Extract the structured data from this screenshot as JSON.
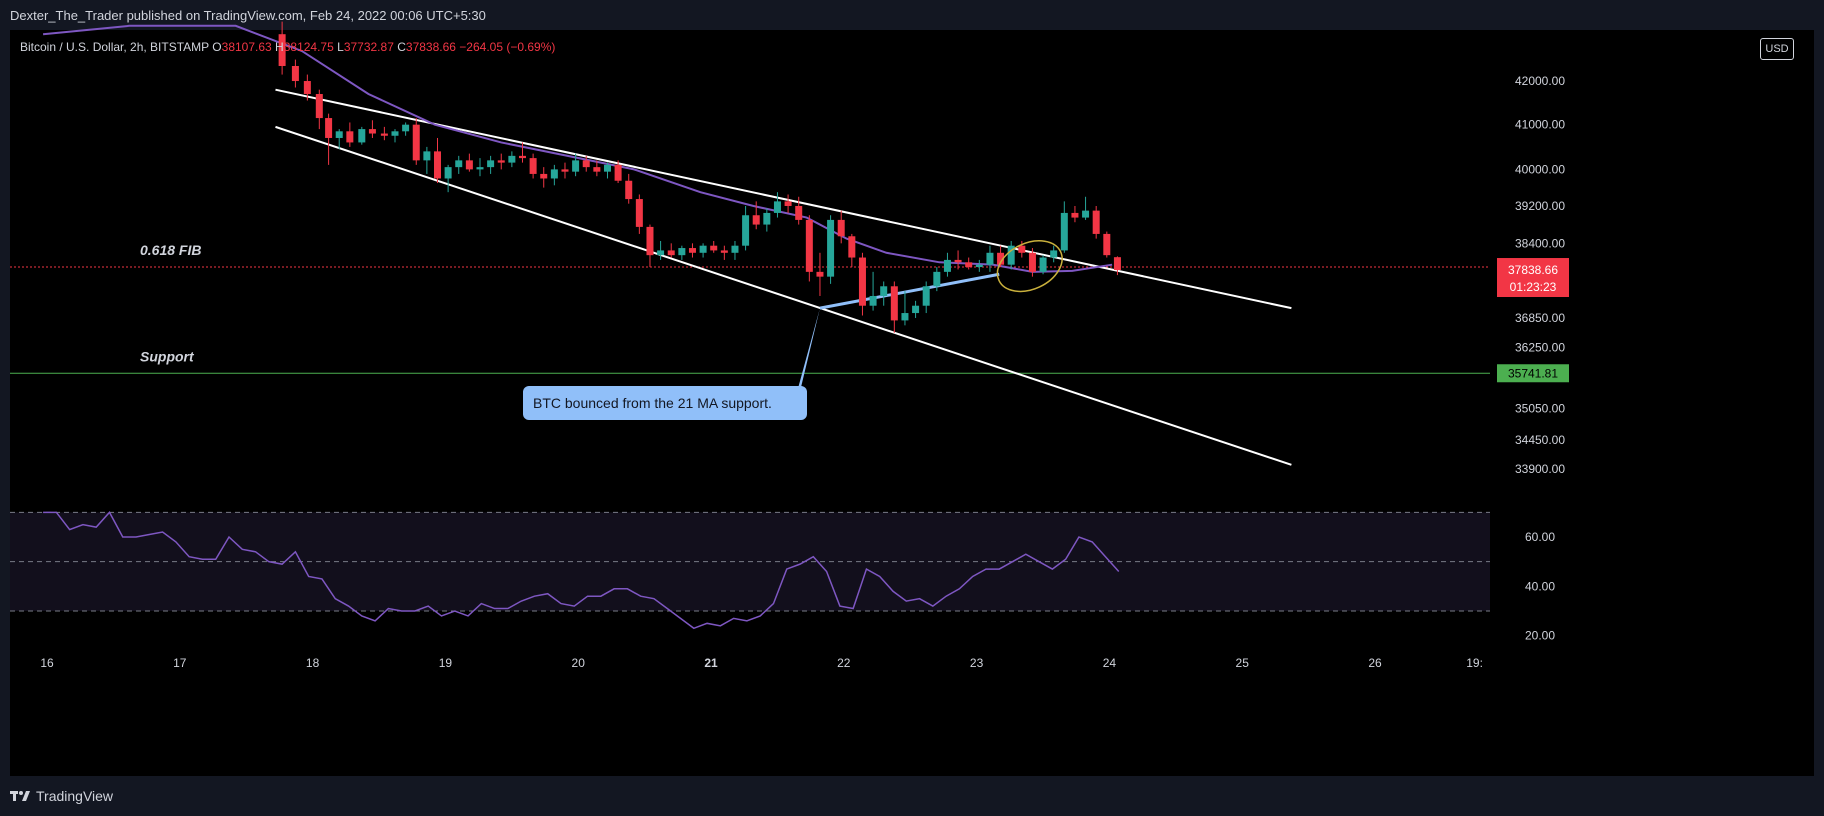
{
  "header": {
    "publisher": "Dexter_The_Trader published on TradingView.com, Feb 24, 2022 00:06 UTC+5:30"
  },
  "legend": {
    "symbol": "Bitcoin / U.S. Dollar, 2h, BITSTAMP",
    "open_label": "O",
    "open": "38107.63",
    "high_label": "H",
    "high": "38124.75",
    "low_label": "L",
    "low": "37732.87",
    "close_label": "C",
    "close": "37838.66",
    "change": "−264.05 (−0.69%)"
  },
  "currency": "USD",
  "footer": {
    "brand": "TradingView"
  },
  "colors": {
    "up": "#26a69a",
    "down": "#f23645",
    "ma": "#7e57c2",
    "rsi": "#7e57c2",
    "channel": "#ffffff",
    "callout": "#90bff9",
    "fib_line": "#f23645",
    "support_line": "#4caf50"
  },
  "chart_data": [
    {
      "type": "line",
      "title": "Bitcoin / U.S. Dollar, 2h, BITSTAMP",
      "xlabel": "",
      "ylabel": "",
      "ylim": [
        33400,
        43200
      ],
      "x_ticks": [
        "16",
        "17",
        "18",
        "19",
        "20",
        "21",
        "22",
        "23",
        "24",
        "25",
        "26",
        "19:"
      ],
      "y_ticks": [
        "42000.00",
        "41000.00",
        "40000.00",
        "39200.00",
        "38400.00",
        "36850.00",
        "36250.00",
        "35050.00",
        "34450.00",
        "33900.00"
      ],
      "candles": [
        {
          "x": 17.65,
          "o": 43100,
          "h": 43400,
          "l": 42150,
          "c": 42350
        },
        {
          "x": 17.75,
          "o": 42350,
          "h": 42500,
          "l": 41850,
          "c": 42000
        },
        {
          "x": 17.84,
          "o": 42000,
          "h": 42150,
          "l": 41550,
          "c": 41700
        },
        {
          "x": 17.93,
          "o": 41700,
          "h": 41800,
          "l": 40900,
          "c": 41150
        },
        {
          "x": 18.0,
          "o": 41150,
          "h": 41250,
          "l": 40100,
          "c": 40700
        },
        {
          "x": 18.08,
          "o": 40700,
          "h": 40900,
          "l": 40450,
          "c": 40850
        },
        {
          "x": 18.16,
          "o": 40850,
          "h": 41050,
          "l": 40500,
          "c": 40600
        },
        {
          "x": 18.25,
          "o": 40600,
          "h": 40950,
          "l": 40550,
          "c": 40900
        },
        {
          "x": 18.33,
          "o": 40900,
          "h": 41100,
          "l": 40700,
          "c": 40800
        },
        {
          "x": 18.42,
          "o": 40800,
          "h": 40950,
          "l": 40650,
          "c": 40750
        },
        {
          "x": 18.5,
          "o": 40750,
          "h": 40900,
          "l": 40600,
          "c": 40850
        },
        {
          "x": 18.58,
          "o": 40850,
          "h": 41050,
          "l": 40750,
          "c": 41000
        },
        {
          "x": 18.66,
          "o": 41000,
          "h": 41150,
          "l": 40100,
          "c": 40200
        },
        {
          "x": 18.74,
          "o": 40200,
          "h": 40500,
          "l": 39900,
          "c": 40400
        },
        {
          "x": 18.82,
          "o": 40400,
          "h": 40700,
          "l": 39700,
          "c": 39800
        },
        {
          "x": 18.9,
          "o": 39800,
          "h": 40100,
          "l": 39500,
          "c": 40050
        },
        {
          "x": 18.98,
          "o": 40050,
          "h": 40300,
          "l": 39900,
          "c": 40200
        },
        {
          "x": 19.06,
          "o": 40200,
          "h": 40350,
          "l": 39950,
          "c": 40000
        },
        {
          "x": 19.14,
          "o": 40000,
          "h": 40250,
          "l": 39850,
          "c": 40050
        },
        {
          "x": 19.22,
          "o": 40050,
          "h": 40300,
          "l": 39900,
          "c": 40200
        },
        {
          "x": 19.3,
          "o": 40200,
          "h": 40350,
          "l": 40000,
          "c": 40150
        },
        {
          "x": 19.38,
          "o": 40150,
          "h": 40400,
          "l": 40050,
          "c": 40300
        },
        {
          "x": 19.46,
          "o": 40300,
          "h": 40600,
          "l": 40150,
          "c": 40250
        },
        {
          "x": 19.54,
          "o": 40250,
          "h": 40350,
          "l": 39800,
          "c": 39900
        },
        {
          "x": 19.62,
          "o": 39900,
          "h": 40050,
          "l": 39600,
          "c": 39800
        },
        {
          "x": 19.7,
          "o": 39800,
          "h": 40100,
          "l": 39650,
          "c": 40000
        },
        {
          "x": 19.78,
          "o": 40000,
          "h": 40150,
          "l": 39800,
          "c": 39950
        },
        {
          "x": 19.86,
          "o": 39950,
          "h": 40350,
          "l": 39850,
          "c": 40200
        },
        {
          "x": 19.94,
          "o": 40200,
          "h": 40300,
          "l": 39950,
          "c": 40050
        },
        {
          "x": 20.02,
          "o": 40050,
          "h": 40200,
          "l": 39850,
          "c": 39950
        },
        {
          "x": 20.1,
          "o": 39950,
          "h": 40150,
          "l": 39800,
          "c": 40100
        },
        {
          "x": 20.18,
          "o": 40100,
          "h": 40200,
          "l": 39700,
          "c": 39750
        },
        {
          "x": 20.26,
          "o": 39750,
          "h": 39900,
          "l": 39250,
          "c": 39350
        },
        {
          "x": 20.34,
          "o": 39350,
          "h": 39450,
          "l": 38600,
          "c": 38750
        },
        {
          "x": 20.42,
          "o": 38750,
          "h": 38800,
          "l": 37900,
          "c": 38150
        },
        {
          "x": 20.5,
          "o": 38150,
          "h": 38450,
          "l": 38050,
          "c": 38250
        },
        {
          "x": 20.58,
          "o": 38250,
          "h": 38400,
          "l": 38100,
          "c": 38150
        },
        {
          "x": 20.66,
          "o": 38150,
          "h": 38350,
          "l": 38050,
          "c": 38300
        },
        {
          "x": 20.74,
          "o": 38300,
          "h": 38400,
          "l": 38100,
          "c": 38200
        },
        {
          "x": 20.82,
          "o": 38200,
          "h": 38400,
          "l": 38100,
          "c": 38350
        },
        {
          "x": 20.9,
          "o": 38350,
          "h": 38450,
          "l": 38200,
          "c": 38250
        },
        {
          "x": 20.98,
          "o": 38250,
          "h": 38350,
          "l": 38050,
          "c": 38200
        },
        {
          "x": 21.06,
          "o": 38200,
          "h": 38450,
          "l": 38050,
          "c": 38350
        },
        {
          "x": 21.14,
          "o": 38350,
          "h": 39200,
          "l": 38250,
          "c": 39000
        },
        {
          "x": 21.22,
          "o": 39000,
          "h": 39300,
          "l": 38700,
          "c": 38800
        },
        {
          "x": 21.3,
          "o": 38800,
          "h": 39150,
          "l": 38650,
          "c": 39050
        },
        {
          "x": 21.38,
          "o": 39050,
          "h": 39500,
          "l": 38950,
          "c": 39300
        },
        {
          "x": 21.46,
          "o": 39300,
          "h": 39450,
          "l": 39050,
          "c": 39200
        },
        {
          "x": 21.54,
          "o": 39200,
          "h": 39400,
          "l": 38800,
          "c": 38900
        },
        {
          "x": 21.62,
          "o": 38900,
          "h": 39000,
          "l": 37600,
          "c": 37800
        },
        {
          "x": 21.7,
          "o": 37800,
          "h": 38200,
          "l": 37300,
          "c": 37700
        },
        {
          "x": 21.78,
          "o": 37700,
          "h": 39000,
          "l": 37550,
          "c": 38900
        },
        {
          "x": 21.86,
          "o": 38900,
          "h": 39100,
          "l": 38400,
          "c": 38550
        },
        {
          "x": 21.94,
          "o": 38550,
          "h": 38600,
          "l": 37900,
          "c": 38100
        },
        {
          "x": 22.02,
          "o": 38100,
          "h": 38200,
          "l": 36900,
          "c": 37100
        },
        {
          "x": 22.1,
          "o": 37100,
          "h": 37800,
          "l": 37000,
          "c": 37300
        },
        {
          "x": 22.18,
          "o": 37300,
          "h": 37600,
          "l": 37100,
          "c": 37500
        },
        {
          "x": 22.26,
          "o": 37500,
          "h": 37600,
          "l": 36550,
          "c": 36800
        },
        {
          "x": 22.34,
          "o": 36800,
          "h": 37400,
          "l": 36700,
          "c": 36950
        },
        {
          "x": 22.42,
          "o": 36950,
          "h": 37200,
          "l": 36850,
          "c": 37100
        },
        {
          "x": 22.5,
          "o": 37100,
          "h": 37600,
          "l": 36950,
          "c": 37500
        },
        {
          "x": 22.58,
          "o": 37500,
          "h": 37900,
          "l": 37400,
          "c": 37800
        },
        {
          "x": 22.66,
          "o": 37800,
          "h": 38200,
          "l": 37700,
          "c": 38050
        },
        {
          "x": 22.74,
          "o": 38050,
          "h": 38250,
          "l": 37850,
          "c": 38000
        },
        {
          "x": 22.82,
          "o": 38000,
          "h": 38100,
          "l": 37850,
          "c": 37900
        },
        {
          "x": 22.9,
          "o": 37900,
          "h": 38050,
          "l": 37800,
          "c": 37950
        },
        {
          "x": 22.98,
          "o": 37950,
          "h": 38350,
          "l": 37800,
          "c": 38200
        },
        {
          "x": 23.06,
          "o": 38200,
          "h": 38350,
          "l": 37900,
          "c": 37950
        },
        {
          "x": 23.14,
          "o": 37950,
          "h": 38450,
          "l": 37850,
          "c": 38350
        },
        {
          "x": 23.22,
          "o": 38350,
          "h": 38450,
          "l": 38100,
          "c": 38200
        },
        {
          "x": 23.3,
          "o": 38200,
          "h": 38300,
          "l": 37700,
          "c": 37800
        },
        {
          "x": 23.38,
          "o": 37800,
          "h": 38150,
          "l": 37750,
          "c": 38100
        },
        {
          "x": 23.46,
          "o": 38100,
          "h": 38350,
          "l": 38000,
          "c": 38250
        },
        {
          "x": 23.54,
          "o": 38250,
          "h": 39300,
          "l": 38200,
          "c": 39050
        },
        {
          "x": 23.62,
          "o": 39050,
          "h": 39200,
          "l": 38850,
          "c": 38950
        },
        {
          "x": 23.7,
          "o": 38950,
          "h": 39400,
          "l": 38900,
          "c": 39100
        },
        {
          "x": 23.78,
          "o": 39100,
          "h": 39200,
          "l": 38500,
          "c": 38600
        },
        {
          "x": 23.86,
          "o": 38600,
          "h": 38650,
          "l": 38100,
          "c": 38150
        },
        {
          "x": 23.94,
          "o": 38107.63,
          "h": 38124.75,
          "l": 37732.87,
          "c": 37838.66
        }
      ],
      "ma_21": [
        {
          "x": 15.85,
          "y": 43100
        },
        {
          "x": 16.5,
          "y": 43300
        },
        {
          "x": 17.3,
          "y": 43300
        },
        {
          "x": 17.8,
          "y": 42700
        },
        {
          "x": 18.3,
          "y": 41700
        },
        {
          "x": 18.8,
          "y": 41000
        },
        {
          "x": 19.3,
          "y": 40600
        },
        {
          "x": 19.8,
          "y": 40300
        },
        {
          "x": 20.3,
          "y": 40000
        },
        {
          "x": 20.8,
          "y": 39500
        },
        {
          "x": 21.2,
          "y": 39200
        },
        {
          "x": 21.6,
          "y": 38950
        },
        {
          "x": 21.9,
          "y": 38500
        },
        {
          "x": 22.2,
          "y": 38200
        },
        {
          "x": 22.6,
          "y": 38000
        },
        {
          "x": 23.0,
          "y": 37950
        },
        {
          "x": 23.3,
          "y": 37800
        },
        {
          "x": 23.6,
          "y": 37820
        },
        {
          "x": 23.9,
          "y": 37950
        }
      ],
      "trendlines": [
        {
          "name": "channel-upper",
          "x1": 17.6,
          "y1": 41800,
          "x2": 25.25,
          "y2": 37050
        },
        {
          "name": "channel-lower",
          "x1": 17.6,
          "y1": 40950,
          "x2": 25.25,
          "y2": 33980
        },
        {
          "name": "ma-support",
          "x1": 21.7,
          "y1": 37050,
          "x2": 23.05,
          "y2": 37750
        }
      ],
      "horizontal_levels": [
        {
          "label": "0.618 FIB",
          "value": 37900.88,
          "tag": "37900.88"
        },
        {
          "label": "Support",
          "value": 35741.81,
          "tag": "35741.81"
        }
      ],
      "last_price_tag": {
        "value": 37838.66,
        "price": "37838.66",
        "countdown": "01:23:23"
      },
      "annotations": [
        {
          "text": "BTC bounced from the 21 MA support.",
          "x": 21.7,
          "y": 37050
        }
      ],
      "ellipse": {
        "x": 23.28,
        "y": 37920
      }
    },
    {
      "type": "line",
      "title": "",
      "ylim": [
        15,
        75
      ],
      "y_ticks": [
        "60.00",
        "40.00",
        "20.00"
      ],
      "band_upper": 70,
      "band_mid": 50,
      "band_lower": 30,
      "series": [
        {
          "x": [
            15.85,
            15.95,
            16.05,
            16.15,
            16.25,
            16.35,
            16.45,
            16.55,
            16.65,
            16.75,
            16.85,
            16.95,
            17.05,
            17.15,
            17.25,
            17.35,
            17.45,
            17.55,
            17.65,
            17.75,
            17.85,
            17.95,
            18.05,
            18.15,
            18.25,
            18.35,
            18.45,
            18.55,
            18.65,
            18.75,
            18.85,
            18.95,
            19.05,
            19.15,
            19.25,
            19.35,
            19.45,
            19.55,
            19.65,
            19.75,
            19.85,
            19.95,
            20.05,
            20.15,
            20.25,
            20.35,
            20.45,
            20.55,
            20.65,
            20.75,
            20.85,
            20.95,
            21.05,
            21.15,
            21.25,
            21.35,
            21.45,
            21.55,
            21.65,
            21.75,
            21.85,
            21.95,
            22.05,
            22.15,
            22.25,
            22.35,
            22.45,
            22.55,
            22.65,
            22.75,
            22.85,
            22.95,
            23.05,
            23.15,
            23.25,
            23.35,
            23.45,
            23.55,
            23.65,
            23.75,
            23.85,
            23.95
          ],
          "values": [
            70,
            70,
            63,
            65,
            64,
            70,
            60,
            60,
            61,
            62,
            58,
            52,
            51,
            51,
            60,
            55,
            54,
            50,
            49,
            54,
            44,
            43,
            35,
            32,
            28,
            26,
            31,
            30,
            30,
            32,
            28,
            30,
            28,
            33,
            31,
            31,
            34,
            36,
            37,
            33,
            32,
            36,
            36,
            39,
            39,
            36,
            35,
            31,
            27,
            23,
            25,
            24,
            27,
            26,
            28,
            33,
            47,
            49,
            52,
            46,
            32,
            31,
            47,
            44,
            38,
            34,
            35,
            32,
            36,
            39,
            44,
            47,
            47,
            50,
            53,
            50,
            47,
            51,
            60,
            58,
            52,
            46
          ]
        }
      ]
    }
  ]
}
